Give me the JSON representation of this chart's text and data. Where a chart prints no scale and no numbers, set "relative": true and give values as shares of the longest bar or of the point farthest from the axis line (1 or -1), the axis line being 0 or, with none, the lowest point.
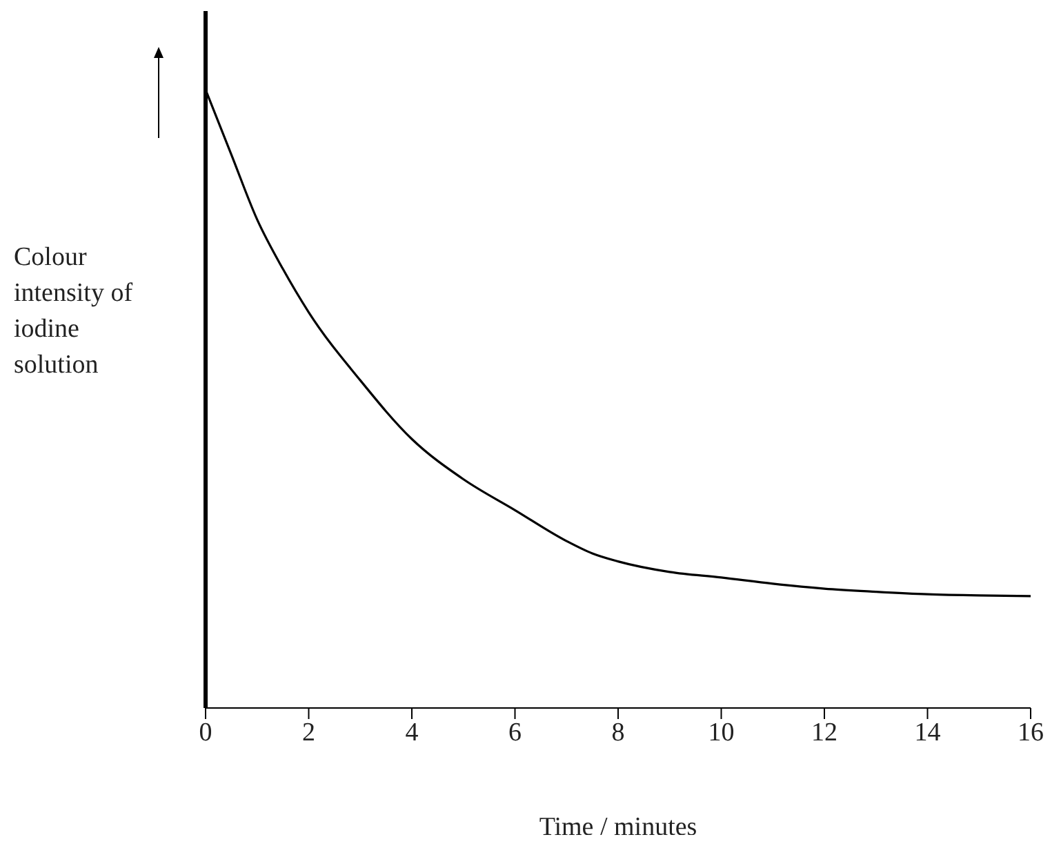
{
  "chart_data": {
    "type": "line",
    "relative": true,
    "xlabel": "Time / minutes",
    "ylabel": "Colour intensity of iodine solution",
    "x": [
      0,
      0.5,
      1,
      1.5,
      2,
      3,
      4,
      5,
      6,
      7,
      7.5,
      8,
      9,
      10,
      11,
      12,
      13,
      14,
      15,
      16
    ],
    "series": [
      {
        "color": "#000000",
        "values": [
          1.0,
          0.895,
          0.79,
          0.71,
          0.64,
          0.53,
          0.435,
          0.37,
          0.32,
          0.27,
          0.25,
          0.237,
          0.22,
          0.211,
          0.201,
          0.193,
          0.188,
          0.184,
          0.182,
          0.181
        ]
      }
    ],
    "xlim": [
      0,
      16
    ],
    "xticks": [
      0,
      2,
      4,
      6,
      8,
      10,
      12,
      14,
      16
    ],
    "grid": false,
    "legend": false,
    "marker": "none",
    "line_style": "solid"
  }
}
